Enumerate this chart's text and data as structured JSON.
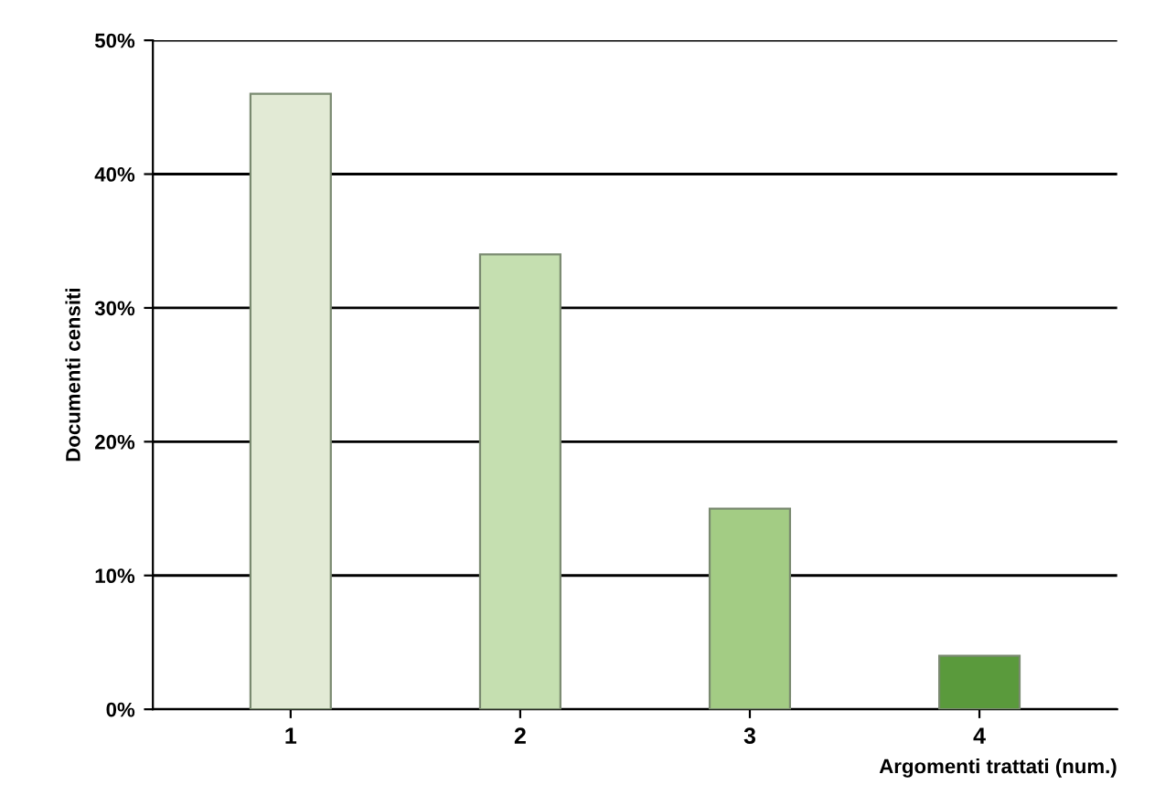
{
  "chart_data": {
    "type": "bar",
    "xlabel": "Argomenti trattati (num.)",
    "ylabel": "Documenti censiti",
    "categories": [
      "1",
      "2",
      "3",
      "4"
    ],
    "values": [
      46,
      34,
      15,
      4
    ],
    "colors": [
      "#e2ead5",
      "#c5dfb0",
      "#a3cc84",
      "#5a9a3c"
    ],
    "ylim": [
      0,
      50
    ],
    "yticks": [
      {
        "value": 0,
        "label": "0%"
      },
      {
        "value": 10,
        "label": "10%"
      },
      {
        "value": 20,
        "label": "20%"
      },
      {
        "value": 30,
        "label": "30%"
      },
      {
        "value": 40,
        "label": "40%"
      },
      {
        "value": 50,
        "label": "50%"
      }
    ],
    "grid": "y"
  }
}
